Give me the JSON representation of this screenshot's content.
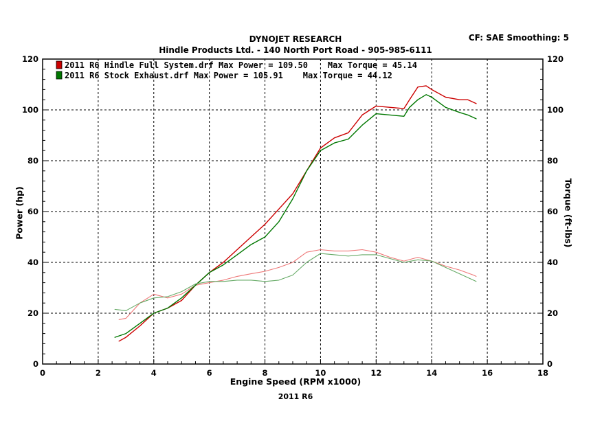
{
  "header": {
    "title": "DYNOJET RESEARCH",
    "subtitle": "Hindle Products Ltd. - 140 North Port Road - 905-985-6111",
    "cf_text": "CF: SAE  Smoothing: 5"
  },
  "footer": {
    "label": "2011 R6"
  },
  "chart_data": {
    "type": "line",
    "xlabel": "Engine Speed (RPM x1000)",
    "ylabel_left": "Power (hp)",
    "ylabel_right": "Torque (ft-lbs)",
    "xlim": [
      0,
      18
    ],
    "ylim": [
      0,
      120
    ],
    "x_ticks": [
      0,
      2,
      4,
      6,
      8,
      10,
      12,
      14,
      16,
      18
    ],
    "y_ticks": [
      0,
      20,
      40,
      60,
      80,
      100,
      120
    ],
    "grid": true,
    "legend_position": "top-left",
    "series": [
      {
        "name": "2011 R6 Hindle Full System.drf Max Power = 109.50    Max Torque = 45.14",
        "quantity": "power",
        "color": "#cc0000",
        "x": [
          2.75,
          3.0,
          3.5,
          4.0,
          4.5,
          5.0,
          5.5,
          6.0,
          6.5,
          7.0,
          7.5,
          8.0,
          8.5,
          9.0,
          9.5,
          10.0,
          10.5,
          11.0,
          11.5,
          12.0,
          12.5,
          13.0,
          13.2,
          13.5,
          13.8,
          14.0,
          14.5,
          15.0,
          15.3,
          15.6
        ],
        "y": [
          9,
          10.5,
          15,
          20,
          22,
          25,
          31,
          36,
          40,
          45,
          50,
          55,
          61,
          67,
          76,
          85,
          89,
          91,
          98,
          101.5,
          101,
          100.5,
          104,
          109,
          109.5,
          108,
          105,
          104,
          104,
          102.5
        ]
      },
      {
        "name": "2011 R6 Hindle Full System.drf Max Power = 109.50    Max Torque = 45.14",
        "quantity": "torque",
        "color": "#ee7777",
        "x": [
          2.75,
          3.0,
          3.5,
          4.0,
          4.5,
          5.0,
          5.5,
          6.0,
          6.5,
          7.0,
          7.5,
          8.0,
          8.5,
          9.0,
          9.5,
          10.0,
          10.5,
          11.0,
          11.5,
          12.0,
          12.5,
          13.0,
          13.5,
          14.0,
          14.5,
          15.0,
          15.5,
          15.6
        ],
        "y": [
          17.5,
          18,
          24,
          27.5,
          26,
          27.5,
          31,
          32,
          33,
          34.5,
          35.5,
          36.5,
          38,
          40,
          44,
          45,
          44.5,
          44.5,
          45,
          44,
          42,
          40.5,
          42,
          40.5,
          38.5,
          37,
          35,
          34.5
        ]
      },
      {
        "name": "2011 R6 Stock Exhaust.drf Max Power = 105.91    Max Torque = 44.12",
        "quantity": "power",
        "color": "#007700",
        "x": [
          2.6,
          3.0,
          3.5,
          4.0,
          4.5,
          5.0,
          5.5,
          6.0,
          6.5,
          7.0,
          7.5,
          8.0,
          8.5,
          9.0,
          9.5,
          10.0,
          10.5,
          11.0,
          11.5,
          12.0,
          12.5,
          13.0,
          13.2,
          13.5,
          13.8,
          14.0,
          14.5,
          15.0,
          15.3,
          15.6
        ],
        "y": [
          10.5,
          12,
          16,
          20,
          22,
          26,
          31,
          36,
          39,
          43,
          47,
          50,
          56,
          65,
          76,
          84,
          87,
          88.5,
          94,
          98.5,
          98,
          97.5,
          101,
          104,
          106,
          105,
          101,
          99,
          98,
          96.5
        ]
      },
      {
        "name": "2011 R6 Stock Exhaust.drf Max Power = 105.91    Max Torque = 44.12",
        "quantity": "torque",
        "color": "#66aa66",
        "x": [
          2.6,
          3.0,
          3.5,
          4.0,
          4.5,
          5.0,
          5.5,
          6.0,
          6.5,
          7.0,
          7.5,
          8.0,
          8.5,
          9.0,
          9.5,
          10.0,
          10.5,
          11.0,
          11.5,
          12.0,
          12.5,
          13.0,
          13.5,
          14.0,
          14.5,
          15.0,
          15.5,
          15.6
        ],
        "y": [
          21.5,
          21,
          24,
          26,
          26.5,
          28.5,
          31.5,
          32.5,
          32.5,
          33,
          33,
          32.5,
          33,
          35,
          40,
          43.5,
          43,
          42.5,
          43,
          43,
          41.5,
          40,
          41,
          40.5,
          38,
          35.5,
          33,
          32.5
        ]
      }
    ],
    "legend": [
      {
        "label": "2011 R6 Hindle Full System.drf Max Power = 109.50    Max Torque = 45.14",
        "color": "#cc0000"
      },
      {
        "label": "2011 R6 Stock Exhaust.drf Max Power = 105.91    Max Torque = 44.12",
        "color": "#007700"
      }
    ]
  }
}
